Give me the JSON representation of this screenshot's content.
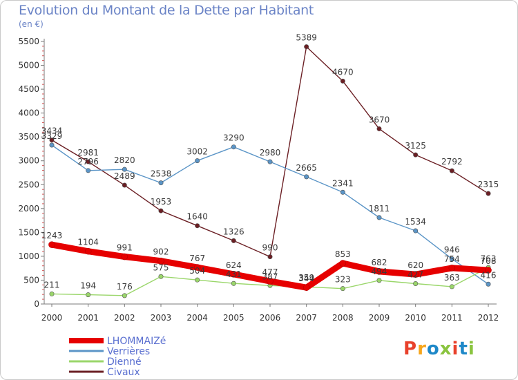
{
  "title": "Evolution du Montant de la Dette par Habitant",
  "unit_label": "(en €)",
  "logo": {
    "text": "Proxiti",
    "colors": [
      "#e8412c",
      "#f7a51b",
      "#1e88c8",
      "#8ac43f",
      "#e8412c",
      "#1e88c8",
      "#8ac43f"
    ]
  },
  "chart_data": {
    "type": "line",
    "x": [
      "2000",
      "2001",
      "2002",
      "2003",
      "2004",
      "2005",
      "2006",
      "2007",
      "2008",
      "2009",
      "2010",
      "2011",
      "2012"
    ],
    "ylim": [
      0,
      5500
    ],
    "yticks": [
      0,
      500,
      1000,
      1500,
      2000,
      2500,
      3000,
      3500,
      4000,
      4500,
      5000,
      5500
    ],
    "grid": false,
    "legend_position": "bottom-left",
    "series": [
      {
        "name": "LHOMMAIZé",
        "color": "#e60000",
        "values": [
          1243,
          1104,
          991,
          902,
          767,
          624,
          477,
          344,
          853,
          682,
          620,
          754,
          708
        ]
      },
      {
        "name": "Verrières",
        "color": "#5b95c7",
        "values": [
          3329,
          2796,
          2820,
          2538,
          3002,
          3290,
          2980,
          2665,
          2341,
          1811,
          1534,
          946,
          416
        ]
      },
      {
        "name": "Dienné",
        "color": "#9ad66a",
        "values": [
          211,
          194,
          176,
          575,
          504,
          431,
          387,
          359,
          323,
          494,
          427,
          363,
          763
        ]
      },
      {
        "name": "Civaux",
        "color": "#6b1f24",
        "values": [
          3434,
          2981,
          2489,
          1953,
          1640,
          1326,
          990,
          5389,
          4670,
          3670,
          3125,
          2792,
          2315
        ]
      }
    ]
  }
}
